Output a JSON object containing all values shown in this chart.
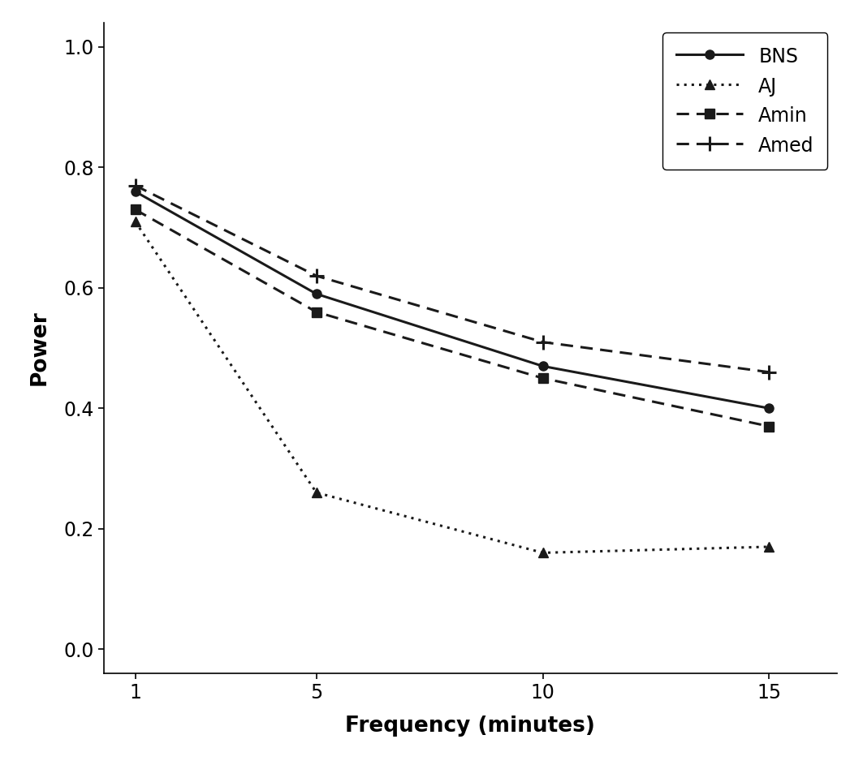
{
  "x": [
    1,
    5,
    10,
    15
  ],
  "BNS": [
    0.76,
    0.59,
    0.47,
    0.4
  ],
  "AJ": [
    0.71,
    0.26,
    0.16,
    0.17
  ],
  "Amin": [
    0.73,
    0.56,
    0.45,
    0.37
  ],
  "Amed": [
    0.77,
    0.62,
    0.51,
    0.46
  ],
  "xlabel": "Frequency (minutes)",
  "ylabel": "Power",
  "ylim": [
    -0.04,
    1.04
  ],
  "xlim": [
    0.3,
    16.5
  ],
  "xticks": [
    1,
    5,
    10,
    15
  ],
  "yticks": [
    0.0,
    0.2,
    0.4,
    0.6,
    0.8,
    1.0
  ],
  "color": "#1a1a1a",
  "bg_color": "#ffffff",
  "linewidth": 2.2,
  "markersize": 8
}
